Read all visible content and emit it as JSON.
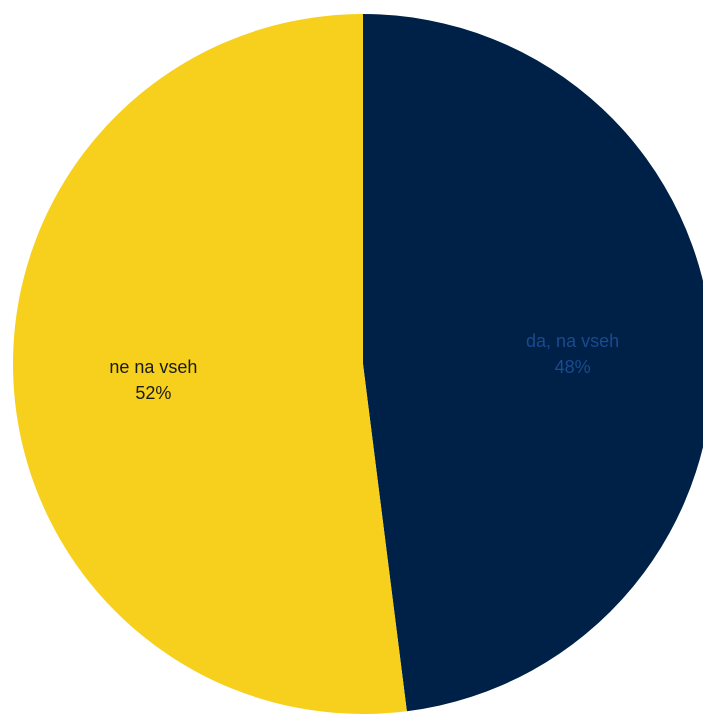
{
  "chart_data": {
    "type": "pie",
    "title": "",
    "start_angle_deg": 0,
    "direction": "clockwise",
    "slices": [
      {
        "label": "da, na vseh",
        "value": 48,
        "percent_label": "48%",
        "color": "#002147",
        "label_color": "#1a4a8f"
      },
      {
        "label": "ne na vseh",
        "value": 52,
        "percent_label": "52%",
        "color": "#f6d01c",
        "label_color": "#1a1a1a"
      }
    ],
    "legend": "none",
    "data_labels": "inside"
  }
}
